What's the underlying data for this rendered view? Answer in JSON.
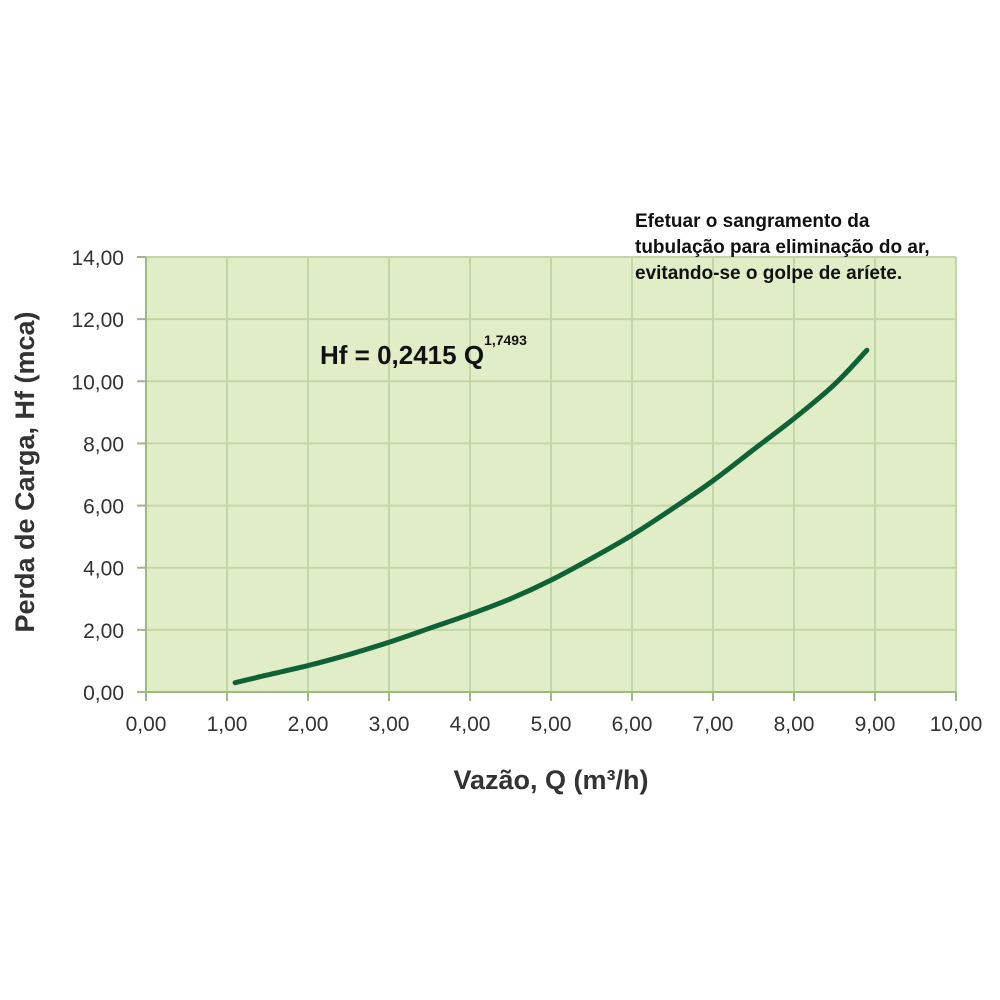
{
  "chart_data": {
    "type": "line",
    "title": "",
    "xlabel": "Vazão, Q (m³/h)",
    "ylabel": "Perda de Carga, Hf (mca)",
    "xlim": [
      0,
      10
    ],
    "ylim": [
      0,
      14
    ],
    "x_ticks": [
      "0,00",
      "1,00",
      "2,00",
      "3,00",
      "4,00",
      "5,00",
      "6,00",
      "7,00",
      "8,00",
      "9,00",
      "10,00"
    ],
    "y_ticks": [
      "0,00",
      "2,00",
      "4,00",
      "6,00",
      "8,00",
      "10,00",
      "12,00",
      "14,00"
    ],
    "grid": true,
    "equation": {
      "main": "Hf = 0,2415 Q",
      "exponent": "1,7493"
    },
    "series": [
      {
        "x": [
          1.1,
          1.5,
          2.0,
          2.5,
          3.0,
          3.5,
          4.0,
          4.5,
          5.0,
          5.5,
          6.0,
          6.5,
          7.0,
          7.5,
          8.0,
          8.5,
          8.9
        ],
        "y": [
          0.3,
          0.55,
          0.85,
          1.2,
          1.6,
          2.05,
          2.5,
          3.0,
          3.6,
          4.3,
          5.05,
          5.9,
          6.8,
          7.8,
          8.8,
          9.9,
          11.0
        ]
      }
    ],
    "colors": {
      "plot_background": "#e1edc6",
      "grid": "#c2d7a8",
      "axis": "#9dbb80",
      "line": "#0e6235"
    }
  },
  "note": {
    "lines": [
      "Efetuar o sangramento da",
      "tubulação para eliminação do ar,",
      "evitando-se o golpe de aríete."
    ]
  }
}
